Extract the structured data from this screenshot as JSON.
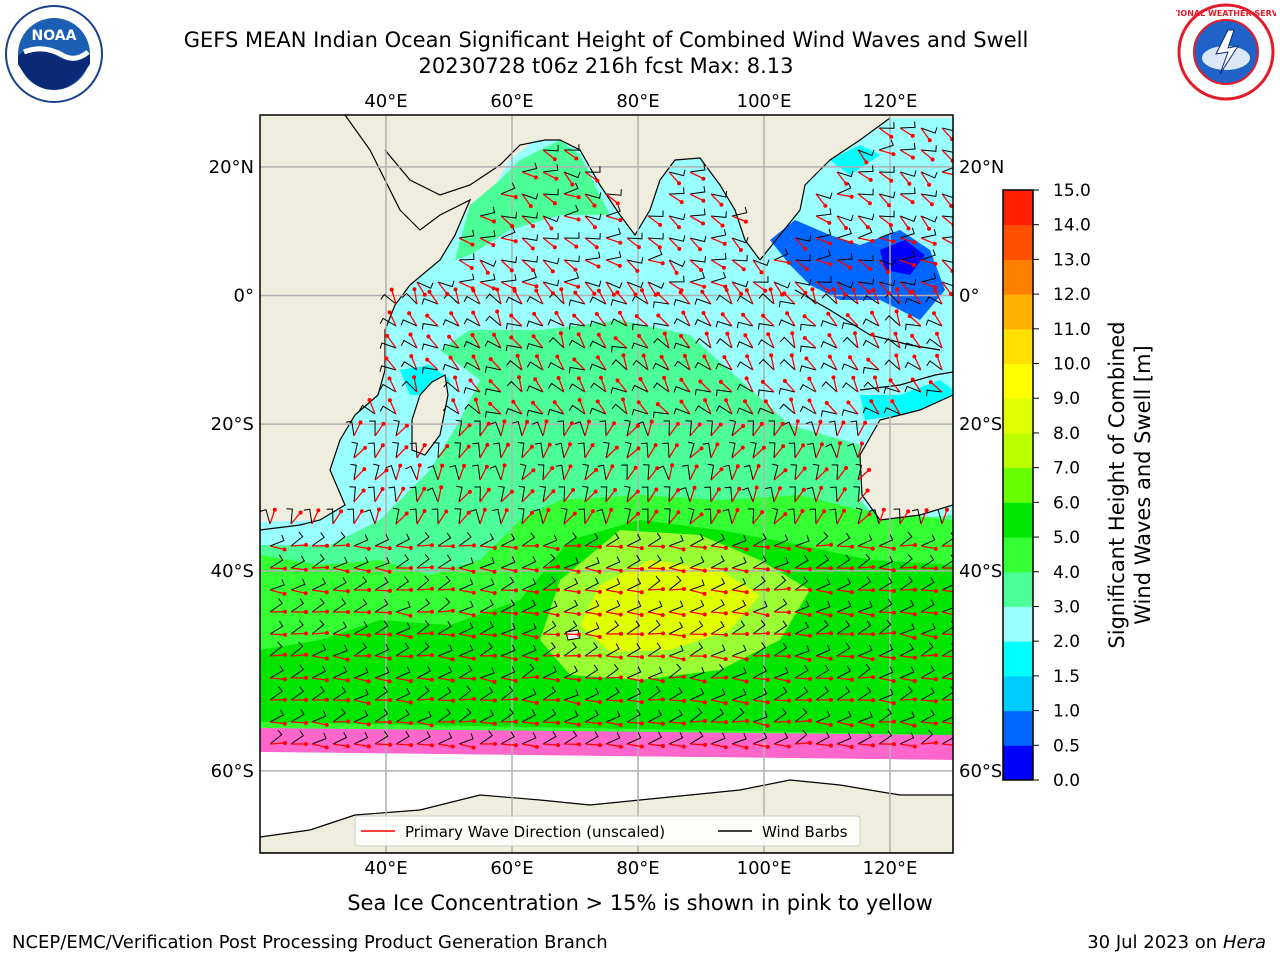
{
  "header": {
    "title_line1": "GEFS MEAN Indian Ocean Significant Height of Combined Wind Waves and Swell",
    "title_line2": "20230728 t06z 216h fcst   Max: 8.13"
  },
  "map": {
    "lon_labels": [
      "40°E",
      "60°E",
      "80°E",
      "100°E",
      "120°E"
    ],
    "lat_labels": [
      "20°N",
      "0°",
      "20°S",
      "40°S",
      "60°S"
    ],
    "lon_values": [
      40,
      60,
      80,
      100,
      120
    ],
    "lat_values": [
      20,
      0,
      -20,
      -40,
      -60
    ],
    "extent": {
      "lon_min": 20,
      "lon_max": 130,
      "lat_min": -75,
      "lat_max": 28
    },
    "colors": {
      "land": "#efedde",
      "coast": "#000000",
      "grid": "#b0b0b0",
      "ice_white": "#ffffff"
    }
  },
  "legend": {
    "wave_label": "Primary Wave Direction (unscaled)",
    "barb_label": "Wind Barbs",
    "wave_color": "#ff0000",
    "barb_color": "#000000"
  },
  "colorbar": {
    "label_line1": "Significant Height of Combined",
    "label_line2": "Wind Waves and Swell [m]",
    "ticks": [
      "0.0",
      "0.5",
      "1.0",
      "1.5",
      "2.0",
      "3.0",
      "4.0",
      "5.0",
      "6.0",
      "7.0",
      "8.0",
      "9.0",
      "10.0",
      "11.0",
      "12.0",
      "13.0",
      "14.0",
      "15.0"
    ],
    "colors": [
      "#0000ff",
      "#0066ff",
      "#00ccff",
      "#00ffff",
      "#99ffff",
      "#4dff99",
      "#33ff33",
      "#00e600",
      "#66ff00",
      "#bbff00",
      "#e0ff00",
      "#ffff00",
      "#ffe000",
      "#ffb000",
      "#ff8000",
      "#ff5000",
      "#ff2000"
    ]
  },
  "caption": "Sea Ice Concentration > 15% is shown in pink to yellow",
  "footer": {
    "left": "NCEP/EMC/Verification Post Processing Product Generation Branch",
    "right_date": "30 Jul 2023 on ",
    "right_host": "Hera"
  },
  "logos": {
    "noaa_text": "NOAA",
    "nws_text": "NATIONAL WEATHER SERVICE"
  }
}
